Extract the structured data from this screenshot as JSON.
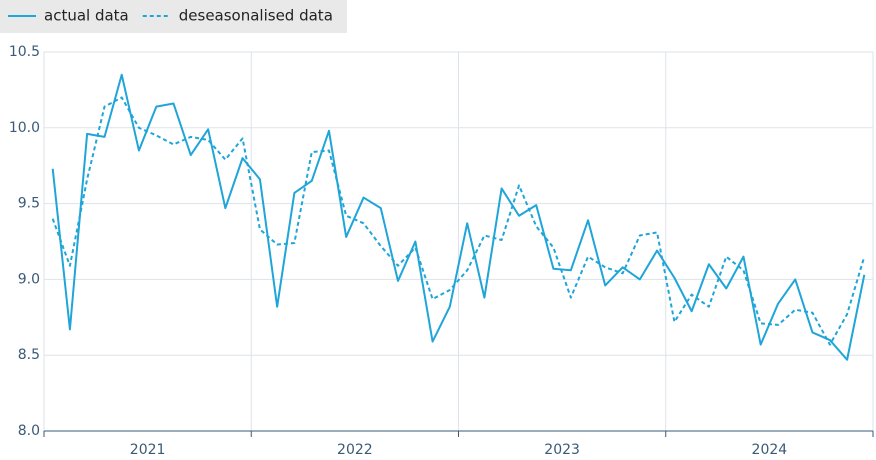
{
  "chart_data": {
    "type": "line",
    "x": [
      2021.042,
      2021.125,
      2021.208,
      2021.292,
      2021.375,
      2021.458,
      2021.542,
      2021.625,
      2021.708,
      2021.792,
      2021.875,
      2021.958,
      2022.042,
      2022.125,
      2022.208,
      2022.292,
      2022.375,
      2022.458,
      2022.542,
      2022.625,
      2022.708,
      2022.792,
      2022.875,
      2022.958,
      2023.042,
      2023.125,
      2023.208,
      2023.292,
      2023.375,
      2023.458,
      2023.542,
      2023.625,
      2023.708,
      2023.792,
      2023.875,
      2023.958,
      2024.042,
      2024.125,
      2024.208,
      2024.292,
      2024.375,
      2024.458,
      2024.542,
      2024.625,
      2024.708,
      2024.792,
      2024.875,
      2024.958
    ],
    "series": [
      {
        "name": "actual data",
        "color": "#1fa5d8",
        "line_style": "solid",
        "values": [
          9.73,
          8.67,
          9.96,
          9.94,
          10.35,
          9.85,
          10.14,
          10.16,
          9.82,
          9.99,
          9.47,
          9.8,
          9.66,
          8.82,
          9.57,
          9.65,
          9.98,
          9.28,
          9.54,
          9.47,
          8.99,
          9.25,
          8.59,
          8.82,
          9.37,
          8.88,
          9.6,
          9.42,
          9.49,
          9.07,
          9.06,
          9.39,
          8.96,
          9.08,
          9.0,
          9.19,
          9.01,
          8.79,
          9.1,
          8.94,
          9.15,
          8.57,
          8.84,
          9.0,
          8.65,
          8.6,
          8.47,
          9.03
        ]
      },
      {
        "name": "deseasonalised data",
        "color": "#1fa5d8",
        "line_style": "dashed",
        "values": [
          9.4,
          9.09,
          9.66,
          10.14,
          10.2,
          10.0,
          9.95,
          9.89,
          9.94,
          9.92,
          9.79,
          9.93,
          9.33,
          9.23,
          9.24,
          9.84,
          9.85,
          9.42,
          9.37,
          9.22,
          9.09,
          9.21,
          8.87,
          8.93,
          9.06,
          9.29,
          9.26,
          9.62,
          9.35,
          9.21,
          8.88,
          9.15,
          9.08,
          9.04,
          9.29,
          9.31,
          8.72,
          8.9,
          8.82,
          9.15,
          9.06,
          8.71,
          8.7,
          8.8,
          8.78,
          8.57,
          8.77,
          9.15
        ]
      }
    ],
    "xlim": [
      2021,
      2025
    ],
    "xticks": [
      2021,
      2022,
      2023,
      2024,
      2025
    ],
    "xlabels": [
      {
        "value": 2021.5,
        "label": "2021"
      },
      {
        "value": 2022.5,
        "label": "2022"
      },
      {
        "value": 2023.5,
        "label": "2023"
      },
      {
        "value": 2024.5,
        "label": "2024"
      }
    ],
    "ylim": [
      8,
      10.5
    ],
    "yticks": [
      {
        "value": 8,
        "label": "8.0"
      },
      8.5,
      {
        "value": 9,
        "label": "9.0"
      },
      9.5,
      {
        "value": 10,
        "label": "10.0"
      },
      10.5
    ],
    "grid": true,
    "legend": "top-left"
  }
}
